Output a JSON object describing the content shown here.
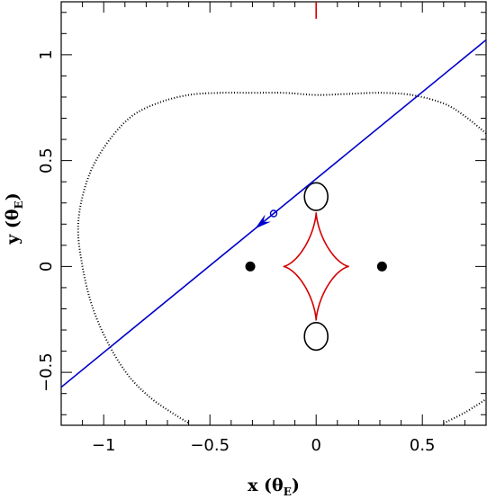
{
  "chart_data": {
    "type": "scatter",
    "title": "",
    "xlabel": "x (θ",
    "xlabel_sub": "E",
    "xlabel_close": ")",
    "ylabel": "y (θ",
    "ylabel_sub": "E",
    "ylabel_close": ")",
    "xlim": [
      -1.2,
      0.8
    ],
    "ylim": [
      -0.75,
      1.25
    ],
    "xticks": [
      -1,
      -0.5,
      0,
      0.5
    ],
    "xtick_labels": [
      "−1",
      "−0.5",
      "0",
      "0.5"
    ],
    "yticks": [
      -0.5,
      0,
      0.5,
      1
    ],
    "ytick_labels": [
      "−0.5",
      "0",
      "0.5",
      "1"
    ],
    "grid": false,
    "colors": {
      "caustic": "#d40000",
      "trajectory": "#0000cc",
      "critical_curve": "#000000",
      "lens": "#000000"
    },
    "lens_positions": {
      "x": [
        -0.31,
        0.31
      ],
      "y": [
        0,
        0
      ]
    },
    "caustic": {
      "center": [
        0,
        0
      ],
      "half_width": 0.155,
      "half_height": 0.255,
      "shape": "astroid"
    },
    "caustic_offscreen_tip": {
      "x": 0,
      "y": [
        1.17,
        1.25
      ]
    },
    "critical_curve_inner": [
      {
        "center": [
          0,
          0.33
        ],
        "rx": 0.055,
        "ry": 0.065
      },
      {
        "center": [
          0,
          -0.33
        ],
        "rx": 0.055,
        "ry": 0.065
      }
    ],
    "critical_curve_outer": {
      "x": [
        0.81,
        0.7,
        0.6,
        0.45,
        0.3,
        0.15,
        0,
        -0.15,
        -0.3,
        -0.45,
        -0.6,
        -0.75,
        -0.88,
        -1.0,
        -1.08,
        -1.12,
        -1.1,
        -1.05,
        -0.97,
        -0.88,
        -0.78,
        -0.68,
        -0.6
      ],
      "y": [
        0.62,
        0.71,
        0.77,
        0.81,
        0.82,
        0.815,
        0.81,
        0.82,
        0.82,
        0.82,
        0.81,
        0.77,
        0.7,
        0.56,
        0.4,
        0.2,
        0.0,
        -0.2,
        -0.38,
        -0.52,
        -0.62,
        -0.69,
        -0.74
      ]
    },
    "critical_curve_outer_right": {
      "x": [
        0.6,
        0.7,
        0.81
      ],
      "y": [
        -0.74,
        -0.69,
        -0.62
      ]
    },
    "trajectory": {
      "x": [
        -1.2,
        0.8
      ],
      "y": [
        -0.57,
        1.07
      ]
    },
    "source_marker": {
      "x": -0.2,
      "y": 0.25
    },
    "direction_arrow": {
      "x": -0.255,
      "y": 0.205,
      "direction": "down-left"
    }
  }
}
